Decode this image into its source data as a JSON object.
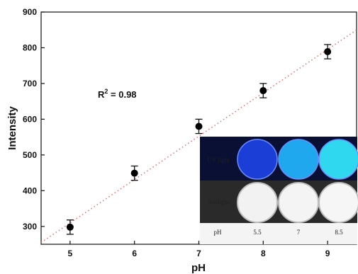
{
  "chart_data": {
    "type": "scatter",
    "title": "",
    "xlabel": "pH",
    "ylabel": "Intensity",
    "xlim": [
      4.55,
      9.45
    ],
    "ylim": [
      250,
      900
    ],
    "xticks": [
      5,
      6,
      7,
      8,
      9
    ],
    "yticks": [
      300,
      400,
      500,
      600,
      700,
      800,
      900
    ],
    "grid": false,
    "points": [
      {
        "x": 5,
        "y": 298,
        "err": 20
      },
      {
        "x": 6,
        "y": 449,
        "err": 20
      },
      {
        "x": 7,
        "y": 580,
        "err": 20
      },
      {
        "x": 8,
        "y": 680,
        "err": 20
      },
      {
        "x": 9,
        "y": 789,
        "err": 20
      }
    ],
    "fit_line": {
      "style": "dotted",
      "color": "#d08080",
      "x": [
        4.55,
        9.45
      ],
      "y": [
        255,
        850
      ]
    },
    "annotation": {
      "prefix": "R",
      "superscript": "2",
      "suffix": " = 0.98"
    }
  },
  "inset": {
    "row_labels": [
      "UV light",
      "Sunlight"
    ],
    "ph_label": "pH",
    "ph_values": [
      "5.5",
      "7",
      "8.5"
    ],
    "uv_colors": [
      "#1b3fd6",
      "#1fa8ee",
      "#2fd8ee"
    ],
    "sun_colors": [
      "#f2f2f2",
      "#f4f4f4",
      "#f6f6f6"
    ]
  }
}
